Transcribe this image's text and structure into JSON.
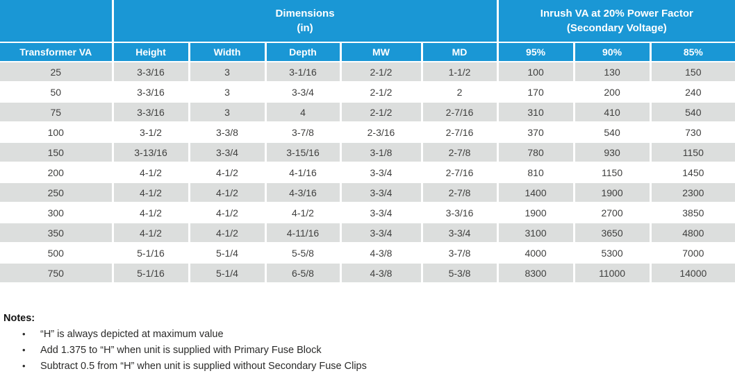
{
  "colors": {
    "header_blue": "#1a97d5",
    "alt_row_gray": "#dcdedd",
    "header_text": "#ffffff",
    "body_text": "#3f3f3e"
  },
  "chart_data": {
    "type": "table",
    "column_groups": [
      {
        "label": "",
        "span": 1
      },
      {
        "label": "Dimensions\n(in)",
        "span": 5
      },
      {
        "label": "Inrush VA at 20% Power Factor\n(Secondary Voltage)",
        "span": 3
      }
    ],
    "columns": [
      "Transformer VA",
      "Height",
      "Width",
      "Depth",
      "MW",
      "MD",
      "95%",
      "90%",
      "85%"
    ],
    "rows": [
      [
        "25",
        "3-3/16",
        "3",
        "3-1/16",
        "2-1/2",
        "1-1/2",
        "100",
        "130",
        "150"
      ],
      [
        "50",
        "3-3/16",
        "3",
        "3-3/4",
        "2-1/2",
        "2",
        "170",
        "200",
        "240"
      ],
      [
        "75",
        "3-3/16",
        "3",
        "4",
        "2-1/2",
        "2-7/16",
        "310",
        "410",
        "540"
      ],
      [
        "100",
        "3-1/2",
        "3-3/8",
        "3-7/8",
        "2-3/16",
        "2-7/16",
        "370",
        "540",
        "730"
      ],
      [
        "150",
        "3-13/16",
        "3-3/4",
        "3-15/16",
        "3-1/8",
        "2-7/8",
        "780",
        "930",
        "1150"
      ],
      [
        "200",
        "4-1/2",
        "4-1/2",
        "4-1/16",
        "3-3/4",
        "2-7/16",
        "810",
        "1150",
        "1450"
      ],
      [
        "250",
        "4-1/2",
        "4-1/2",
        "4-3/16",
        "3-3/4",
        "2-7/8",
        "1400",
        "1900",
        "2300"
      ],
      [
        "300",
        "4-1/2",
        "4-1/2",
        "4-1/2",
        "3-3/4",
        "3-3/16",
        "1900",
        "2700",
        "3850"
      ],
      [
        "350",
        "4-1/2",
        "4-1/2",
        "4-11/16",
        "3-3/4",
        "3-3/4",
        "3100",
        "3650",
        "4800"
      ],
      [
        "500",
        "5-1/16",
        "5-1/4",
        "5-5/8",
        "4-3/8",
        "3-7/8",
        "4000",
        "5300",
        "7000"
      ],
      [
        "750",
        "5-1/16",
        "5-1/4",
        "6-5/8",
        "4-3/8",
        "5-3/8",
        "8300",
        "11000",
        "14000"
      ]
    ]
  },
  "notes": {
    "title": "Notes:",
    "items": [
      "“H” is always depicted at maximum value",
      "Add 1.375 to “H” when unit is supplied with Primary Fuse Block",
      "Subtract 0.5 from “H” when unit is supplied without Secondary Fuse Clips"
    ]
  }
}
